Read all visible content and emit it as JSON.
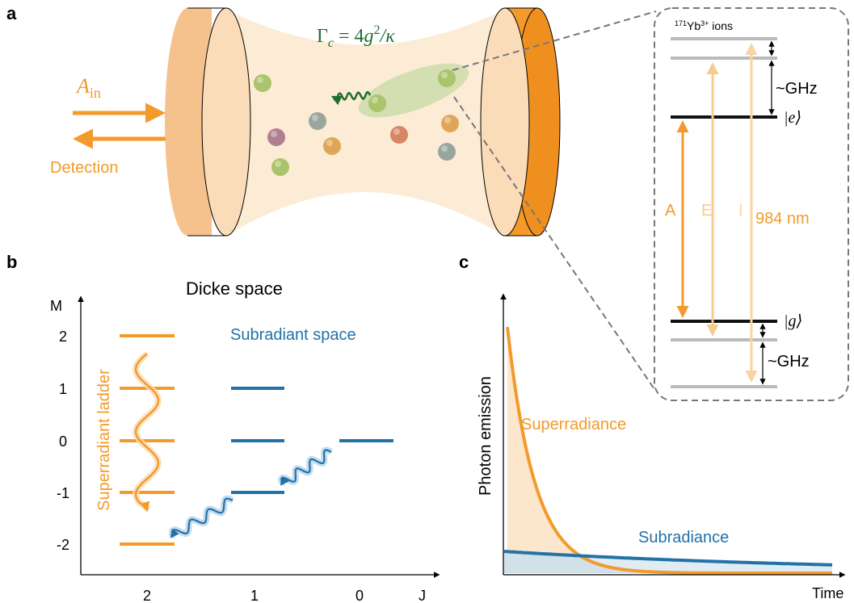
{
  "panel_a": {
    "label": "a",
    "input": {
      "symbol": "A",
      "subscript": "in"
    },
    "detection": "Detection",
    "rate": {
      "gamma": "Γ",
      "sub": "c",
      "eq": " = 4",
      "g": "g",
      "exp": "2",
      "rest": "/κ"
    },
    "levels": {
      "ion_mass": "171",
      "ion": "Yb",
      "ion_charge": "3+",
      "ion_suffix": " ions",
      "splitting_top": "~GHz",
      "excited": "|e⟩",
      "transitions": [
        "A",
        "E",
        "I"
      ],
      "wavelength": "984 nm",
      "ground": "|g⟩",
      "splitting_bottom": "~GHz"
    }
  },
  "panel_b": {
    "label": "b",
    "title": "Dicke space",
    "y_axis": "M",
    "m_labels": [
      "2",
      "1",
      "0",
      "-1",
      "-2"
    ],
    "subradiant": "Subradiant space",
    "superradiant": "Superradiant ladder",
    "j_labels": [
      "2",
      "1",
      "0"
    ],
    "x_axis": "J"
  },
  "panel_c": {
    "label": "c",
    "y_axis": "Photon emission",
    "x_axis": "Time",
    "super": "Superradiance",
    "sub": "Subradiance"
  }
}
